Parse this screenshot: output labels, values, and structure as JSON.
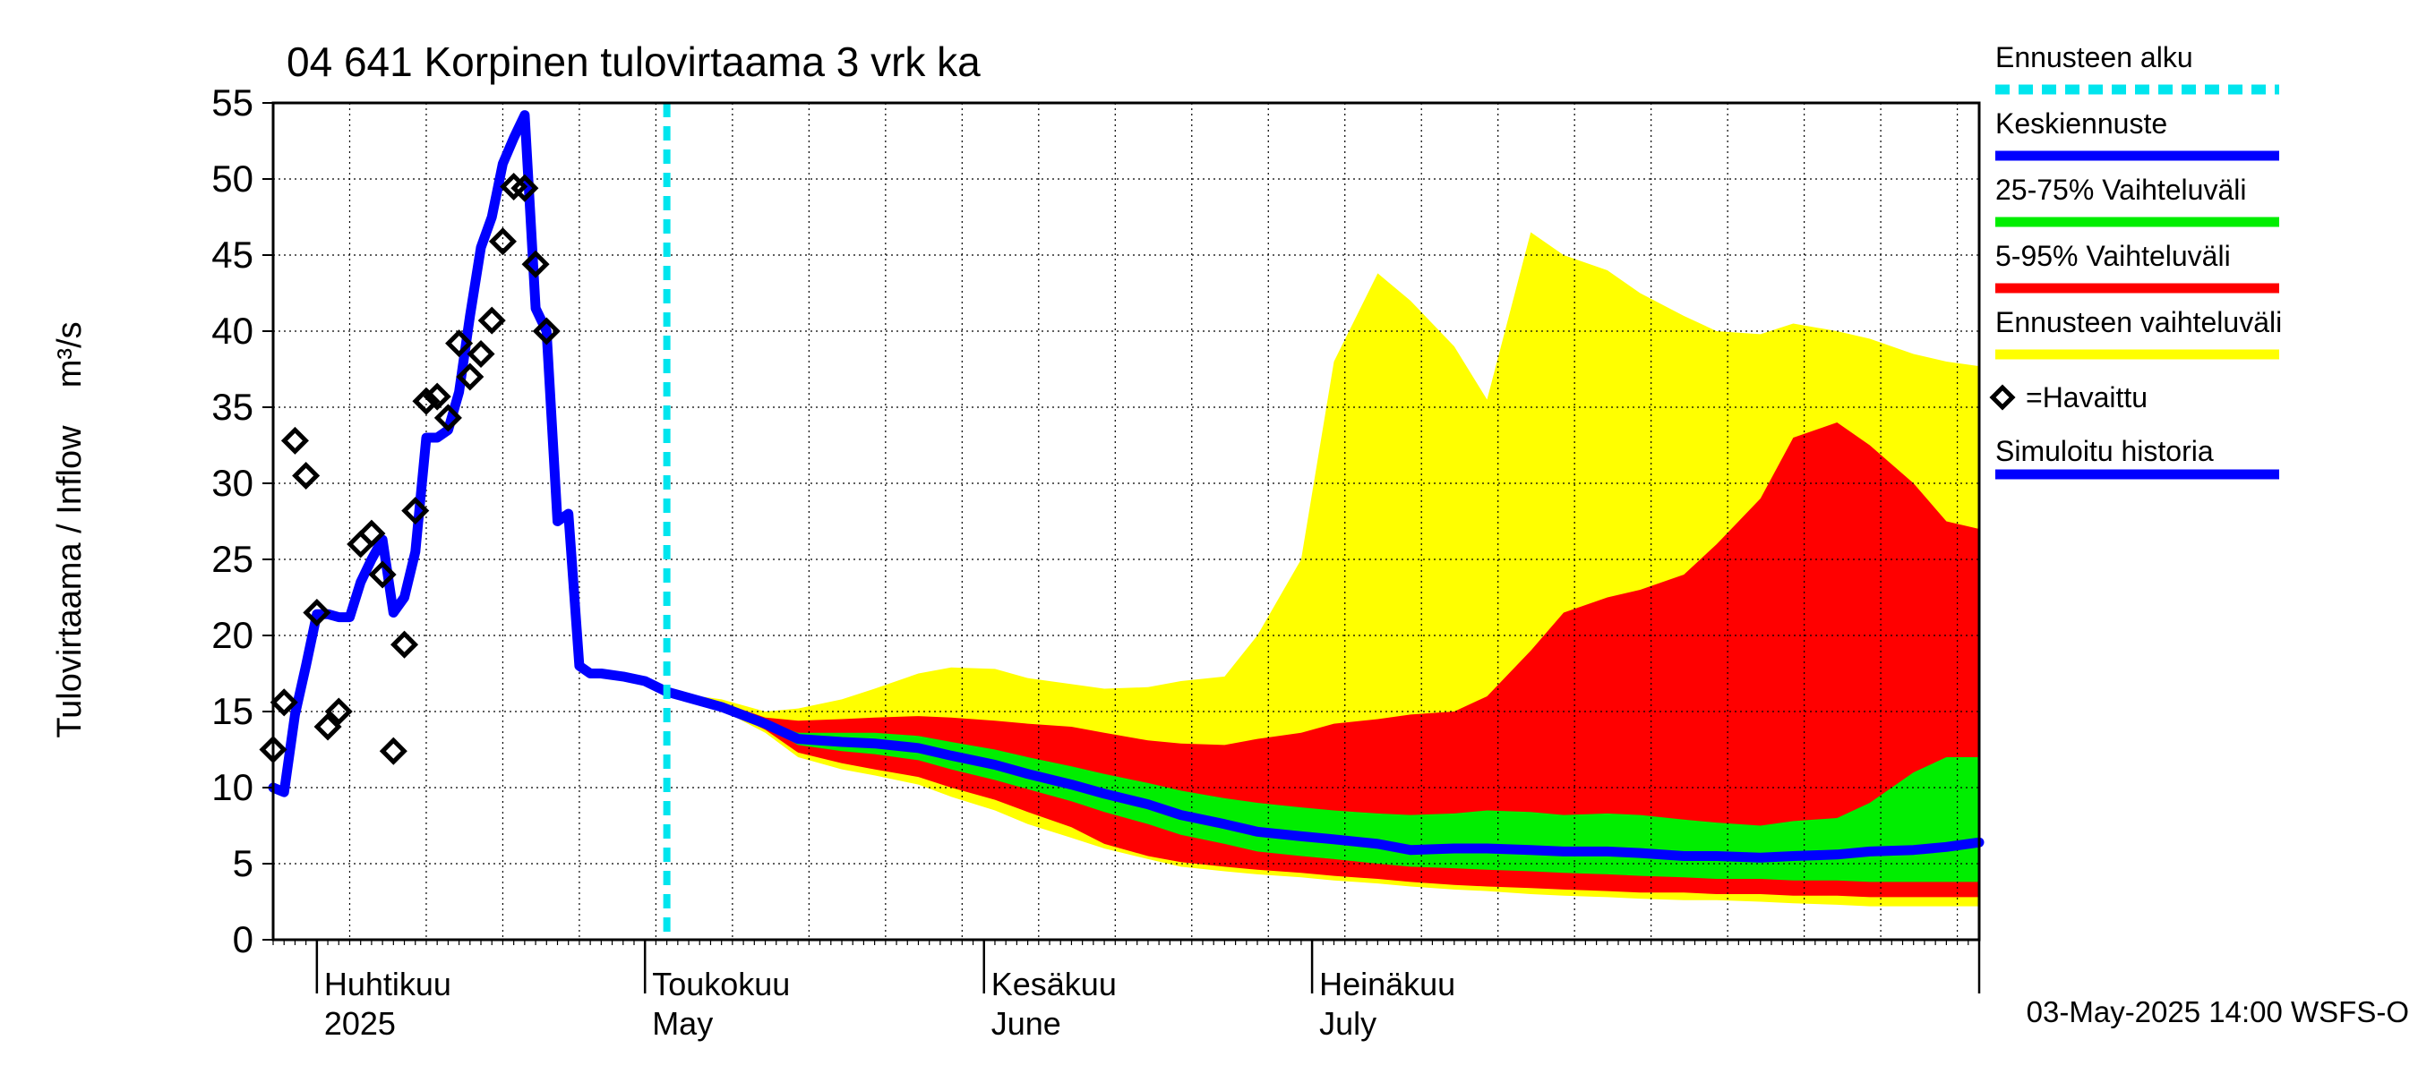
{
  "chart_data": {
    "type": "area",
    "title": "04 641 Korpinen tulovirtaama 3 vrk ka",
    "ylabel": "Tulovirtaama / Inflow    m³/s",
    "ylim": [
      0,
      55
    ],
    "yticks": [
      0,
      5,
      10,
      15,
      20,
      25,
      30,
      35,
      40,
      45,
      50,
      55
    ],
    "x_start": "2025-03-28",
    "x_end": "2025-08-31",
    "forecast_start": "2025-05-03",
    "month_labels": [
      {
        "date": "2025-04-01",
        "fi": "Huhtikuu",
        "en": "2025"
      },
      {
        "date": "2025-05-01",
        "fi": "Toukokuu",
        "en": "May"
      },
      {
        "date": "2025-06-01",
        "fi": "Kesäkuu",
        "en": "June"
      },
      {
        "date": "2025-07-01",
        "fi": "Heinäkuu",
        "en": "July"
      }
    ],
    "timestamp": "03-May-2025 14:00 WSFS-O",
    "legend": [
      {
        "label": "Ennusteen alku",
        "color": "#00e5ee",
        "style": "dashed"
      },
      {
        "label": "Keskiennuste",
        "color": "#0000ff",
        "style": "line"
      },
      {
        "label": "25-75% Vaihteluväli",
        "color": "#00ee00",
        "style": "line"
      },
      {
        "label": "5-95% Vaihteluväli",
        "color": "#ff0000",
        "style": "line"
      },
      {
        "label": "Ennusteen vaihteluväli",
        "color": "#ffff00",
        "style": "line"
      },
      {
        "label": "=Havaittu",
        "color": "#000000",
        "style": "diamond"
      },
      {
        "label": "Simuloitu historia",
        "color": "#0000ff",
        "style": "line"
      }
    ],
    "observed": [
      [
        "2025-03-28",
        12.5
      ],
      [
        "2025-03-29",
        15.6
      ],
      [
        "2025-03-30",
        32.8
      ],
      [
        "2025-03-31",
        30.5
      ],
      [
        "2025-04-01",
        21.5
      ],
      [
        "2025-04-02",
        14.0
      ],
      [
        "2025-04-03",
        15.0
      ],
      [
        "2025-04-05",
        26.0
      ],
      [
        "2025-04-06",
        26.7
      ],
      [
        "2025-04-07",
        24.0
      ],
      [
        "2025-04-08",
        12.4
      ],
      [
        "2025-04-09",
        19.4
      ],
      [
        "2025-04-10",
        28.2
      ],
      [
        "2025-04-11",
        35.4
      ],
      [
        "2025-04-12",
        35.7
      ],
      [
        "2025-04-13",
        34.3
      ],
      [
        "2025-04-14",
        39.2
      ],
      [
        "2025-04-15",
        37.0
      ],
      [
        "2025-04-16",
        38.5
      ],
      [
        "2025-04-17",
        40.7
      ],
      [
        "2025-04-18",
        45.9
      ],
      [
        "2025-04-19",
        49.5
      ],
      [
        "2025-04-20",
        49.4
      ],
      [
        "2025-04-21",
        44.4
      ],
      [
        "2025-04-22",
        40.0
      ]
    ],
    "simulated": [
      [
        "2025-03-28",
        10.0
      ],
      [
        "2025-03-29",
        9.7
      ],
      [
        "2025-03-30",
        14.8
      ],
      [
        "2025-03-31",
        18.0
      ],
      [
        "2025-04-01",
        21.4
      ],
      [
        "2025-04-02",
        21.4
      ],
      [
        "2025-04-03",
        21.2
      ],
      [
        "2025-04-04",
        21.2
      ],
      [
        "2025-04-05",
        23.5
      ],
      [
        "2025-04-06",
        25.0
      ],
      [
        "2025-04-07",
        26.3
      ],
      [
        "2025-04-08",
        21.5
      ],
      [
        "2025-04-09",
        22.5
      ],
      [
        "2025-04-10",
        25.5
      ],
      [
        "2025-04-11",
        33.0
      ],
      [
        "2025-04-12",
        33.0
      ],
      [
        "2025-04-13",
        33.5
      ],
      [
        "2025-04-14",
        36.0
      ],
      [
        "2025-04-15",
        41.0
      ],
      [
        "2025-04-16",
        45.5
      ],
      [
        "2025-04-17",
        47.5
      ],
      [
        "2025-04-18",
        51.0
      ],
      [
        "2025-04-19",
        52.7
      ],
      [
        "2025-04-20",
        54.2
      ],
      [
        "2025-04-21",
        41.5
      ],
      [
        "2025-04-22",
        40.0
      ],
      [
        "2025-04-23",
        27.5
      ],
      [
        "2025-04-24",
        28.0
      ],
      [
        "2025-04-25",
        18.0
      ],
      [
        "2025-04-26",
        17.5
      ],
      [
        "2025-04-27",
        17.5
      ],
      [
        "2025-04-29",
        17.3
      ],
      [
        "2025-05-01",
        17.0
      ],
      [
        "2025-05-03",
        16.3
      ]
    ],
    "forecast_dates": [
      "2025-05-03",
      "2025-05-08",
      "2025-05-12",
      "2025-05-15",
      "2025-05-19",
      "2025-05-22",
      "2025-05-26",
      "2025-05-29",
      "2025-06-02",
      "2025-06-05",
      "2025-06-09",
      "2025-06-12",
      "2025-06-16",
      "2025-06-19",
      "2025-06-23",
      "2025-06-26",
      "2025-06-30",
      "2025-07-03",
      "2025-07-07",
      "2025-07-10",
      "2025-07-14",
      "2025-07-17",
      "2025-07-21",
      "2025-07-24",
      "2025-07-28",
      "2025-07-31",
      "2025-08-04",
      "2025-08-07",
      "2025-08-11",
      "2025-08-14",
      "2025-08-18",
      "2025-08-21",
      "2025-08-25",
      "2025-08-28",
      "2025-08-31"
    ],
    "forecast_median": [
      16.3,
      15.3,
      14.2,
      13.2,
      13.0,
      12.9,
      12.6,
      12.1,
      11.5,
      10.9,
      10.2,
      9.6,
      8.9,
      8.2,
      7.6,
      7.1,
      6.8,
      6.6,
      6.3,
      5.9,
      6.0,
      6.0,
      5.9,
      5.8,
      5.8,
      5.7,
      5.5,
      5.5,
      5.4,
      5.5,
      5.6,
      5.8,
      5.9,
      6.1,
      6.4
    ],
    "band_25_75": {
      "low": [
        16.3,
        15.3,
        14.0,
        12.8,
        12.4,
        12.2,
        11.8,
        11.2,
        10.5,
        9.9,
        9.1,
        8.4,
        7.6,
        6.9,
        6.3,
        5.8,
        5.5,
        5.3,
        5.0,
        4.8,
        4.7,
        4.6,
        4.5,
        4.4,
        4.3,
        4.2,
        4.1,
        4.0,
        4.0,
        3.9,
        3.9,
        3.8,
        3.8,
        3.8,
        3.8
      ],
      "high": [
        16.3,
        15.4,
        14.4,
        13.6,
        13.6,
        13.6,
        13.4,
        13.0,
        12.5,
        12.0,
        11.4,
        10.9,
        10.3,
        9.8,
        9.3,
        9.0,
        8.7,
        8.5,
        8.3,
        8.2,
        8.3,
        8.5,
        8.4,
        8.2,
        8.3,
        8.2,
        7.9,
        7.7,
        7.5,
        7.8,
        8.0,
        9.0,
        11.0,
        12.0,
        12.0
      ]
    },
    "band_5_95": {
      "low": [
        16.3,
        15.2,
        13.8,
        12.3,
        11.6,
        11.2,
        10.7,
        10.0,
        9.2,
        8.4,
        7.4,
        6.3,
        5.5,
        5.1,
        4.8,
        4.6,
        4.4,
        4.2,
        4.0,
        3.8,
        3.6,
        3.5,
        3.4,
        3.3,
        3.2,
        3.1,
        3.1,
        3.0,
        3.0,
        2.9,
        2.9,
        2.8,
        2.8,
        2.8,
        2.8
      ],
      "high": [
        16.3,
        15.6,
        14.6,
        14.4,
        14.5,
        14.6,
        14.7,
        14.6,
        14.4,
        14.2,
        14.0,
        13.6,
        13.1,
        12.9,
        12.8,
        13.2,
        13.6,
        14.2,
        14.5,
        14.8,
        15.0,
        16.0,
        19.0,
        21.5,
        22.5,
        23.0,
        24.0,
        26.0,
        29.0,
        33.0,
        34.0,
        32.5,
        30.0,
        27.5,
        27.0
      ]
    },
    "band_full": {
      "low": [
        16.3,
        15.1,
        13.6,
        12.0,
        11.2,
        10.8,
        10.2,
        9.4,
        8.5,
        7.6,
        6.7,
        6.0,
        5.3,
        4.8,
        4.5,
        4.3,
        4.1,
        3.9,
        3.7,
        3.5,
        3.3,
        3.2,
        3.0,
        2.9,
        2.8,
        2.7,
        2.6,
        2.6,
        2.5,
        2.4,
        2.3,
        2.2,
        2.2,
        2.2,
        2.2
      ],
      "high": [
        16.3,
        15.8,
        15.0,
        15.2,
        15.8,
        16.5,
        17.5,
        17.9,
        17.8,
        17.2,
        16.8,
        16.5,
        16.6,
        17.0,
        17.3,
        20.0,
        25.0,
        38.0,
        43.8,
        42.0,
        39.0,
        35.5,
        46.5,
        45.0,
        44.0,
        42.5,
        41.0,
        40.0,
        39.8,
        40.5,
        40.0,
        39.5,
        38.5,
        38.0,
        37.7
      ]
    }
  }
}
